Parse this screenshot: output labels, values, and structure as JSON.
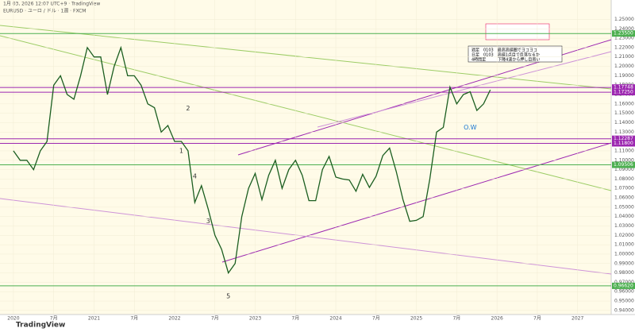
{
  "header": "1月 03, 2026 12:07 UTC+9  ·  TradingView",
  "chart_data": {
    "type": "line",
    "title": "EURUSD · ユーロ / ドル · 1週 · FXCM",
    "color": "#1b5e20",
    "x": [
      "2020-01",
      "2020-02",
      "2020-03",
      "2020-04",
      "2020-05",
      "2020-06",
      "2020-07",
      "2020-08",
      "2020-09",
      "2020-10",
      "2020-11",
      "2020-12",
      "2021-01",
      "2021-02",
      "2021-03",
      "2021-04",
      "2021-05",
      "2021-06",
      "2021-07",
      "2021-08",
      "2021-09",
      "2021-10",
      "2021-11",
      "2021-12",
      "2022-01",
      "2022-02",
      "2022-03",
      "2022-04",
      "2022-05",
      "2022-06",
      "2022-07",
      "2022-08",
      "2022-09",
      "2022-10",
      "2022-11",
      "2022-12",
      "2023-01",
      "2023-02",
      "2023-03",
      "2023-04",
      "2023-05",
      "2023-06",
      "2023-07",
      "2023-08",
      "2023-09",
      "2023-10",
      "2023-11",
      "2023-12",
      "2024-01",
      "2024-02",
      "2024-03",
      "2024-04",
      "2024-05",
      "2024-06",
      "2024-07",
      "2024-08",
      "2024-09",
      "2024-10",
      "2024-11",
      "2024-12",
      "2025-01",
      "2025-02",
      "2025-03",
      "2025-04",
      "2025-05",
      "2025-06",
      "2025-07",
      "2025-08",
      "2025-09",
      "2025-10",
      "2025-11",
      "2025-12"
    ],
    "values": [
      1.11,
      1.1,
      1.1,
      1.09,
      1.11,
      1.12,
      1.18,
      1.19,
      1.17,
      1.165,
      1.19,
      1.22,
      1.21,
      1.21,
      1.17,
      1.2,
      1.22,
      1.19,
      1.19,
      1.18,
      1.16,
      1.156,
      1.13,
      1.137,
      1.12,
      1.12,
      1.11,
      1.055,
      1.073,
      1.048,
      1.02,
      1.005,
      0.98,
      0.99,
      1.04,
      1.07,
      1.086,
      1.058,
      1.084,
      1.1,
      1.07,
      1.09,
      1.1,
      1.084,
      1.057,
      1.057,
      1.09,
      1.104,
      1.082,
      1.08,
      1.079,
      1.067,
      1.085,
      1.071,
      1.083,
      1.105,
      1.113,
      1.088,
      1.058,
      1.035,
      1.036,
      1.04,
      1.08,
      1.13,
      1.135,
      1.178,
      1.16,
      1.17,
      1.173,
      1.153,
      1.16,
      1.175
    ],
    "xlim": [
      "2019-11",
      "2027-06"
    ],
    "xticks": [
      {
        "value": "2020-01",
        "label": "2020"
      },
      {
        "value": "2020-07",
        "label": "7月"
      },
      {
        "value": "2021-01",
        "label": "2021"
      },
      {
        "value": "2021-07",
        "label": "7月"
      },
      {
        "value": "2022-01",
        "label": "2022"
      },
      {
        "value": "2022-07",
        "label": "7月"
      },
      {
        "value": "2023-01",
        "label": "2023"
      },
      {
        "value": "2023-07",
        "label": "7月"
      },
      {
        "value": "2024-01",
        "label": "2024"
      },
      {
        "value": "2024-07",
        "label": "7月"
      },
      {
        "value": "2025-01",
        "label": "2025"
      },
      {
        "value": "2025-07",
        "label": "7月"
      },
      {
        "value": "2026-01",
        "label": "2026"
      },
      {
        "value": "2026-07",
        "label": "7月"
      },
      {
        "value": "2027-01",
        "label": "2027"
      }
    ],
    "ylim": [
      0.9365,
      1.2707
    ],
    "yticks": [
      {
        "value": 0.94,
        "label": "0.94000"
      },
      {
        "value": 0.95,
        "label": "0.95000"
      },
      {
        "value": 0.96,
        "label": "0.96000"
      },
      {
        "value": 0.97,
        "label": "0.97000"
      },
      {
        "value": 0.98,
        "label": "0.98000"
      },
      {
        "value": 0.99,
        "label": "0.99000"
      },
      {
        "value": 1.0,
        "label": "1.00000"
      },
      {
        "value": 1.01,
        "label": "1.01000"
      },
      {
        "value": 1.02,
        "label": "1.02000"
      },
      {
        "value": 1.03,
        "label": "1.03000"
      },
      {
        "value": 1.04,
        "label": "1.04000"
      },
      {
        "value": 1.05,
        "label": "1.05000"
      },
      {
        "value": 1.06,
        "label": "1.06000"
      },
      {
        "value": 1.07,
        "label": "1.07000"
      },
      {
        "value": 1.08,
        "label": "1.08000"
      },
      {
        "value": 1.09,
        "label": "1.09000"
      },
      {
        "value": 1.1,
        "label": "1.10000"
      },
      {
        "value": 1.11,
        "label": "1.11000"
      },
      {
        "value": 1.12,
        "label": "1.12000"
      },
      {
        "value": 1.13,
        "label": "1.13000"
      },
      {
        "value": 1.14,
        "label": "1.14000"
      },
      {
        "value": 1.15,
        "label": "1.15000"
      },
      {
        "value": 1.16,
        "label": "1.16000"
      },
      {
        "value": 1.17,
        "label": "1.17000"
      },
      {
        "value": 1.18,
        "label": "1.18000"
      },
      {
        "value": 1.19,
        "label": "1.19000"
      },
      {
        "value": 1.2,
        "label": "1.20000"
      },
      {
        "value": 1.21,
        "label": "1.21000"
      },
      {
        "value": 1.22,
        "label": "1.22000"
      },
      {
        "value": 1.23,
        "label": "1.23000"
      },
      {
        "value": 1.24,
        "label": "1.24000"
      },
      {
        "value": 1.25,
        "label": "1.25000"
      }
    ],
    "levels": [
      {
        "value": 1.235,
        "label": "1.23500",
        "color": "#4caf50"
      },
      {
        "value": 1.1775,
        "label": "1.17748",
        "color": "#9c27b0"
      },
      {
        "value": 1.1725,
        "label": "1.17250",
        "color": "#9c27b0"
      },
      {
        "value": 1.1229,
        "label": "1.12287",
        "color": "#9c27b0"
      },
      {
        "value": 1.118,
        "label": "1.11800",
        "color": "#9c27b0"
      },
      {
        "value": 1.0951,
        "label": "1.09506",
        "color": "#4caf50"
      },
      {
        "value": 0.9662,
        "label": "0.96620",
        "color": "#4caf50"
      }
    ],
    "wave_labels": [
      {
        "x": "2022-02",
        "y": 1.11,
        "label": "1"
      },
      {
        "x": "2022-03",
        "y": 1.155,
        "label": "2"
      },
      {
        "x": "2022-06",
        "y": 1.035,
        "label": "3"
      },
      {
        "x": "2022-04",
        "y": 1.083,
        "label": "4"
      },
      {
        "x": "2022-09",
        "y": 0.955,
        "label": "5"
      },
      {
        "x": "2025-09",
        "y": 1.135,
        "label": "O.W"
      }
    ],
    "note": [
      "週足　0103　最高高値圏でヨコヨコ",
      "日足　0103　高値1点目で反落なるか",
      "4時間足　　　下降4波から押し目買い"
    ]
  },
  "footer": "TradingView"
}
